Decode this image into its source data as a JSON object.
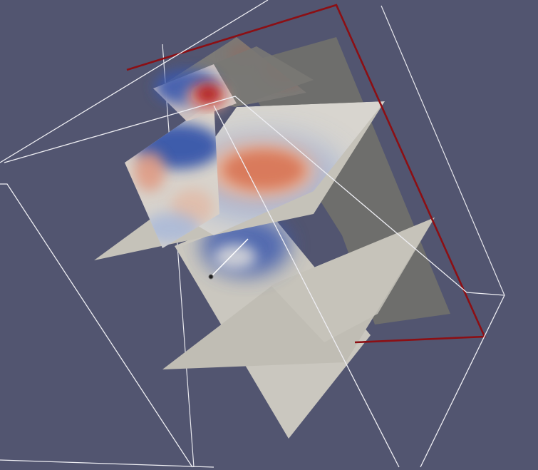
{
  "view": {
    "type": "3d-render-viewport",
    "background_color": "#525570",
    "frame_color": "#ffffff",
    "outline_color": "#8c0f14",
    "slice_plane_color": "#bfbcb3",
    "shaded_plane_color": "#6e6e6c",
    "colormap": {
      "name": "cool-to-warm",
      "low": "#2b4aa6",
      "mid": "#f0ede8",
      "high": "#b0121b"
    },
    "icons": [
      "rotation-center-icon"
    ]
  }
}
